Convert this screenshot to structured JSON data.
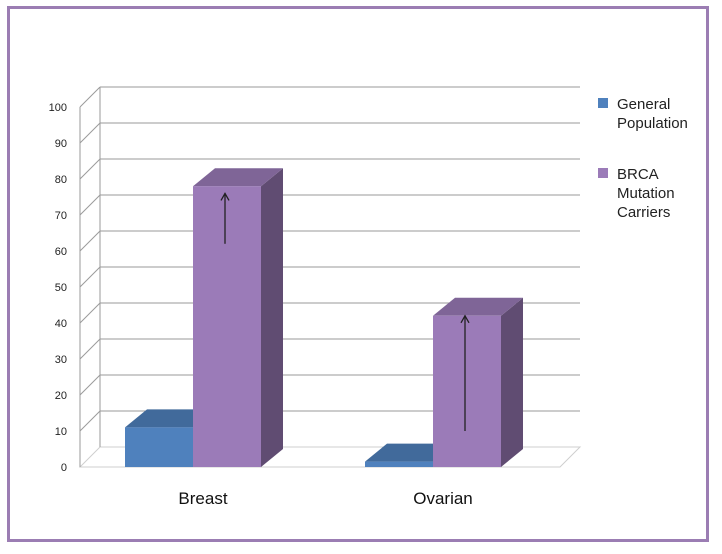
{
  "chart_data": {
    "type": "bar",
    "title": "",
    "xlabel": "",
    "ylabel": "",
    "categories": [
      "Breast",
      "Ovarian"
    ],
    "series": [
      {
        "name": "General Population",
        "values": [
          11,
          1.5
        ],
        "color": "#4f81bd"
      },
      {
        "name": "BRCA Mutation Carriers",
        "values": [
          78,
          42
        ],
        "color": "#9b7bb8"
      }
    ],
    "ylim": [
      0,
      100
    ],
    "yticks": [
      0,
      10,
      20,
      30,
      40,
      50,
      60,
      70,
      80,
      90,
      100
    ],
    "grid": true,
    "legend_position": "right",
    "legend_lines": [
      [
        "General",
        "Population"
      ],
      [
        "BRCA",
        "Mutation",
        "Carriers"
      ]
    ],
    "annotations": [
      {
        "type": "up-arrow",
        "category": "Breast",
        "from": 62,
        "to": 76
      },
      {
        "type": "up-arrow",
        "category": "Ovarian",
        "from": 10,
        "to": 42
      }
    ],
    "border_color": "#9b7db3"
  }
}
